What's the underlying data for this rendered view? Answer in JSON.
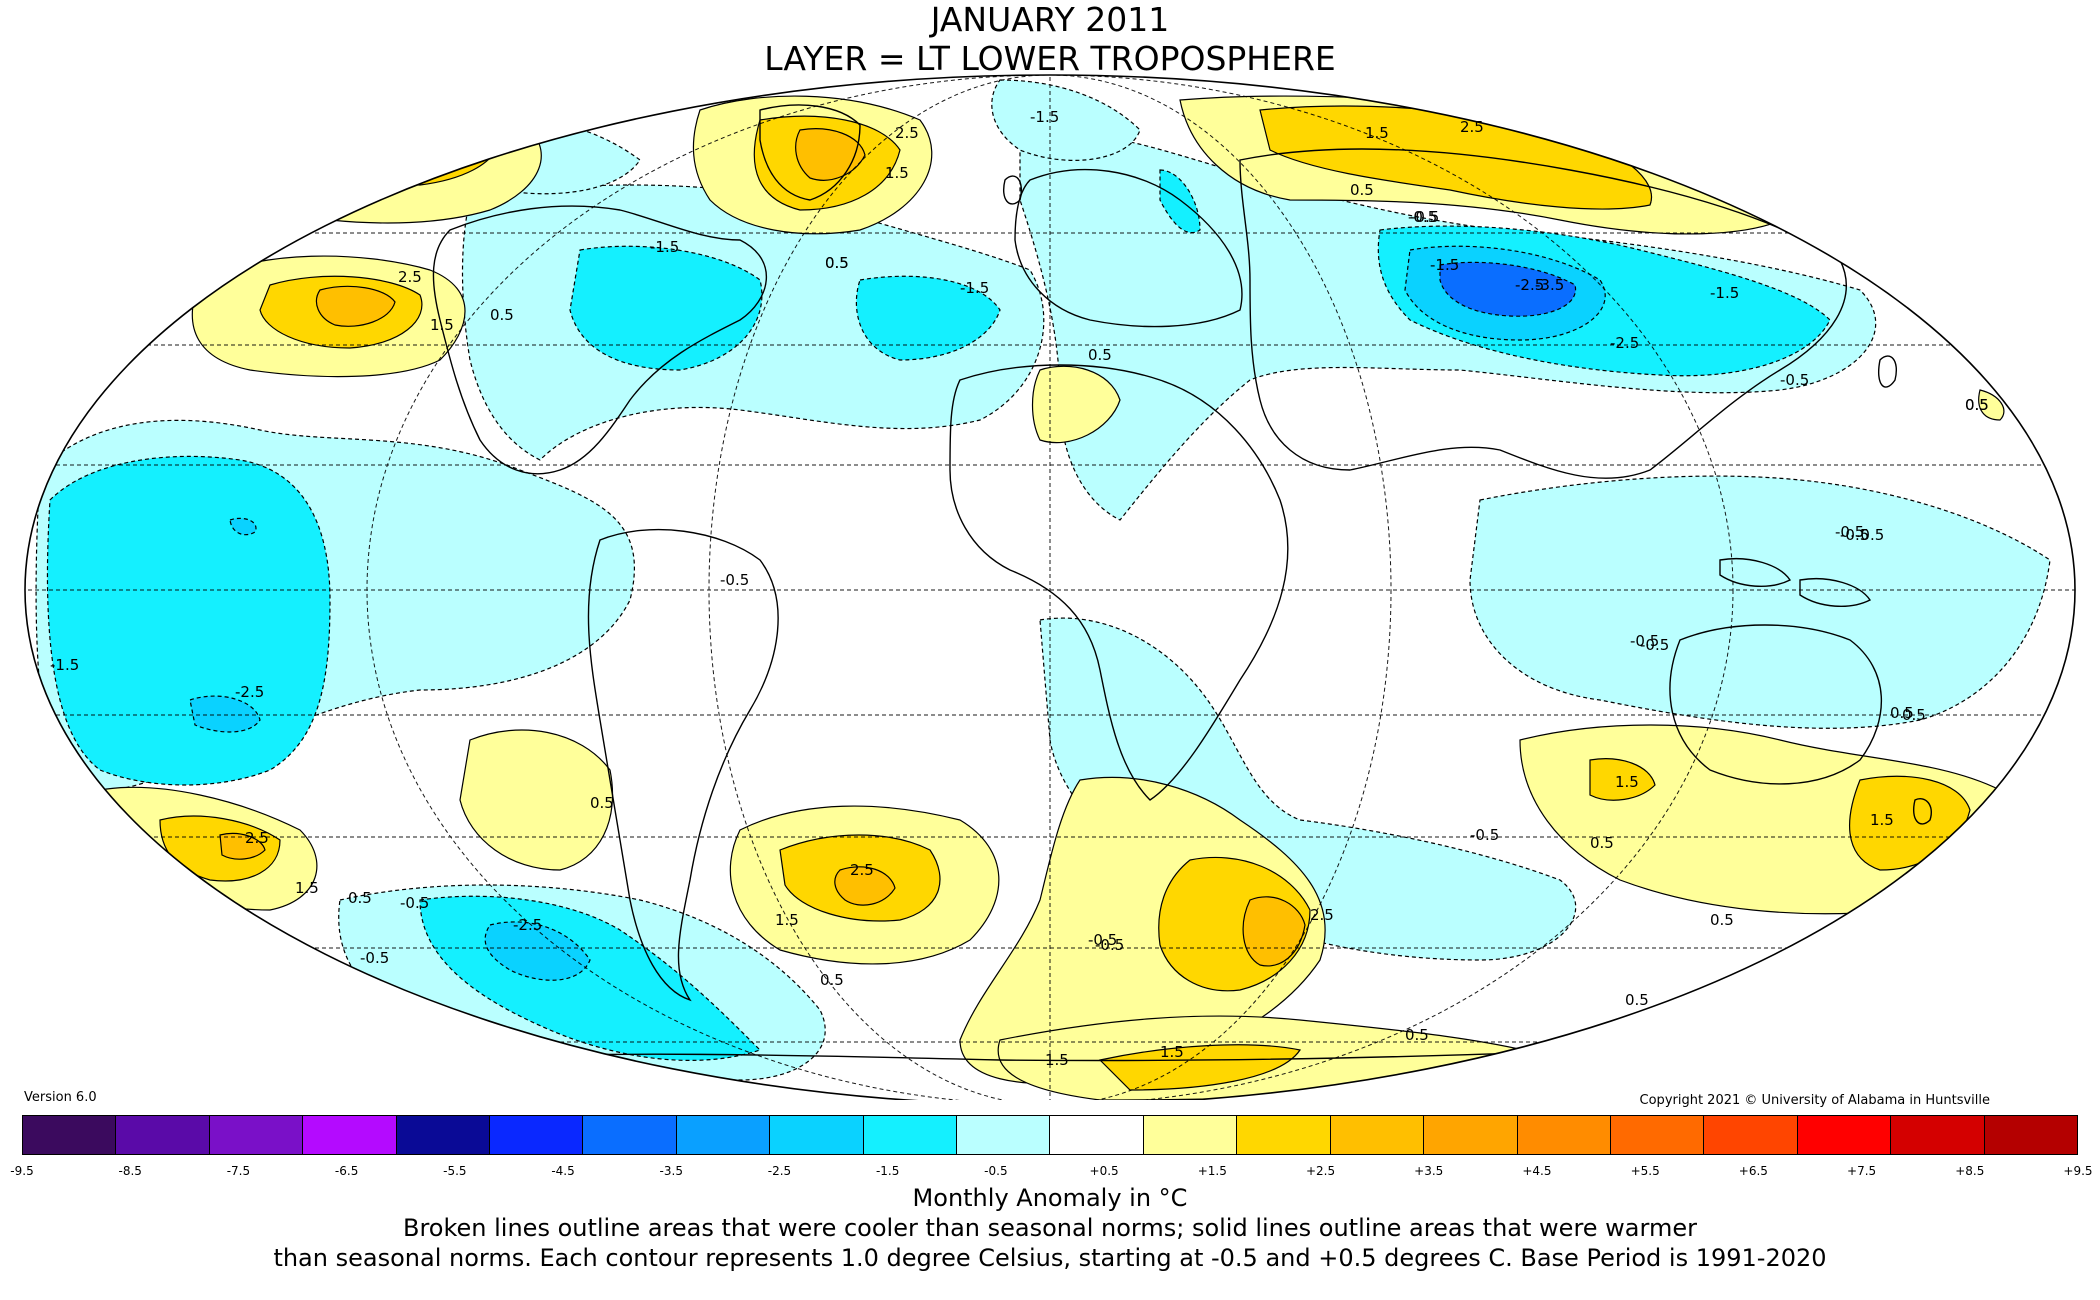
{
  "title": {
    "line1": "JANUARY 2011",
    "line2": "LAYER = LT LOWER TROPOSPHERE"
  },
  "version": "Version 6.0",
  "copyright": "Copyright 2021 © University of Alabama in Huntsville",
  "colorbar": {
    "colors": [
      "#3b0a5e",
      "#5a0aa8",
      "#7a10c8",
      "#b40aff",
      "#0a0a96",
      "#0a28ff",
      "#0a6eff",
      "#0aa0ff",
      "#0ad2ff",
      "#14f0ff",
      "#baffff",
      "#ffffff",
      "#ffff9a",
      "#ffd700",
      "#ffbf00",
      "#ffa500",
      "#ff8c00",
      "#ff6a00",
      "#ff4500",
      "#ff0000",
      "#d40000",
      "#b40000"
    ],
    "ticks": [
      "-9.5",
      "-8.5",
      "-7.5",
      "-6.5",
      "-5.5",
      "-4.5",
      "-3.5",
      "-2.5",
      "-1.5",
      "-0.5",
      "+0.5",
      "+1.5",
      "+2.5",
      "+3.5",
      "+4.5",
      "+5.5",
      "+6.5",
      "+7.5",
      "+8.5",
      "+9.5"
    ],
    "label": "Monthly Anomaly in °C"
  },
  "notes": {
    "line1": "Broken lines outline areas that were cooler than seasonal norms; solid lines outline areas that were warmer",
    "line2": "than seasonal norms. Each contour represents 1.0 degree Celsius, starting at -0.5 and +0.5 degrees C. Base Period is 1991-2020"
  },
  "map": {
    "projection": "mollweide",
    "colors": {
      "ocean_neutral": "#ffffff",
      "cool_1": "#baffff",
      "cool_2": "#14f0ff",
      "cool_3": "#0ad2ff",
      "cool_4": "#0aa0ff",
      "cool_5": "#0a6eff",
      "warm_1": "#ffff9a",
      "warm_2": "#ffd700",
      "warm_3": "#ffbf00"
    },
    "contour_labels": [
      "-1.5",
      "1.5",
      "2.5",
      "-0.5",
      "0.5",
      "-1.5",
      "2.5",
      "1.5",
      "0.5",
      "-1.5",
      "0.5",
      "-1.5",
      "-2.5",
      "-0.5",
      "2.5",
      "1.5",
      "0.5",
      "-0.5",
      "-3.5",
      "-2.5",
      "-1.5",
      "-0.5",
      "0.5",
      "0.5",
      "-0.5",
      "-1.5",
      "-2.5",
      "-0.5",
      "0.5",
      "2.5",
      "1.5",
      "0.5",
      "0.5",
      "-0.5",
      "-0.5",
      "-2.5",
      "-0.5",
      "2.5",
      "1.5",
      "0.5",
      "-0.5",
      "2.5",
      "1.5",
      "1.5",
      "0.5",
      "0.5",
      "1.5",
      "-0.5",
      "0.5",
      "-0.5",
      "0.5",
      "-0.5",
      "0.5",
      "1.5",
      "0.5",
      "-0.5"
    ]
  }
}
